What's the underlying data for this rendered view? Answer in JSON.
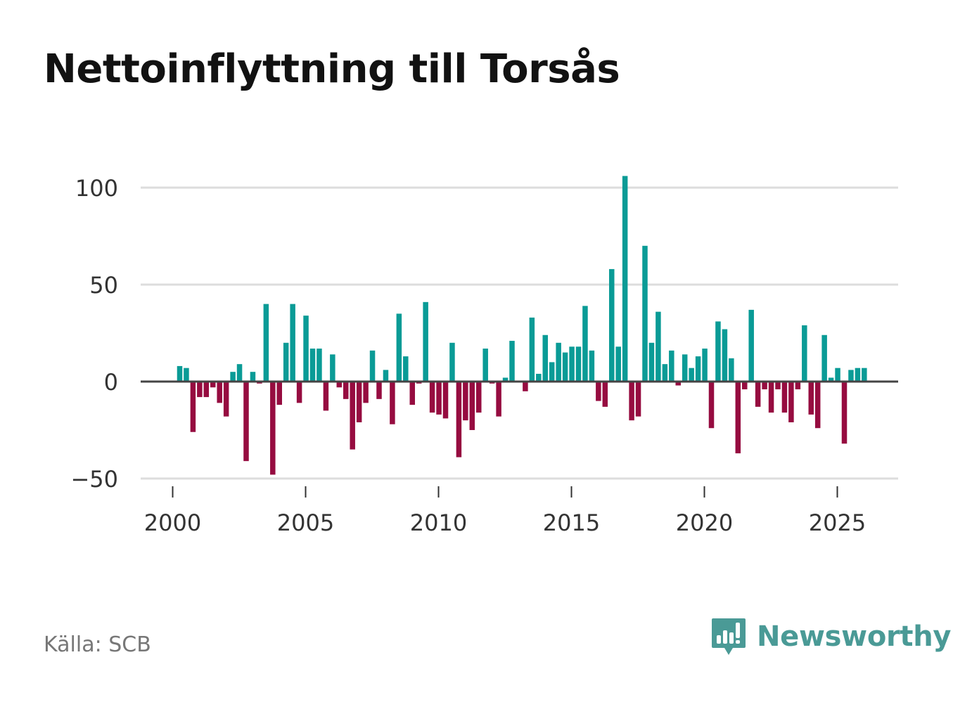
{
  "title": "Nettoinflyttning till Torsås",
  "source": "Källa: SCB",
  "brand": {
    "name": "Newsworthy",
    "logo_icon": "newsworthy-logo-icon"
  },
  "colors": {
    "positive": "#0a9b96",
    "negative": "#960c40",
    "grid": "#dddddd",
    "zero_line": "#444444",
    "brand": "#4a9a96"
  },
  "chart_data": {
    "type": "bar",
    "title": "Nettoinflyttning till Torsås",
    "xlabel": "",
    "ylabel": "",
    "x_start": 2000.0,
    "x_step": 0.25,
    "values": [
      8,
      7,
      -26,
      -8,
      -8,
      -3,
      -11,
      -18,
      5,
      9,
      -41,
      5,
      -1,
      40,
      -48,
      -12,
      20,
      40,
      -11,
      34,
      17,
      17,
      -15,
      14,
      -3,
      -9,
      -35,
      -21,
      -11,
      16,
      -9,
      6,
      -22,
      35,
      13,
      -12,
      -1,
      41,
      -16,
      -17,
      -19,
      20,
      -39,
      -20,
      -25,
      -16,
      17,
      -1,
      -18,
      2,
      21,
      0,
      -5,
      33,
      4,
      24,
      10,
      20,
      15,
      18,
      18,
      39,
      16,
      -10,
      -13,
      58,
      18,
      106,
      -20,
      -18,
      70,
      20,
      36,
      9,
      16,
      -2,
      14,
      7,
      13,
      17,
      -24,
      31,
      27,
      12,
      -37,
      -4,
      37,
      -13,
      -4,
      -16,
      -4,
      -16,
      -21,
      -4,
      29,
      -17,
      -24,
      24,
      2,
      7,
      -32,
      6,
      7,
      7
    ],
    "x_ticks": [
      "2000",
      "2005",
      "2010",
      "2015",
      "2020",
      "2025"
    ],
    "y_ticks": [
      "100",
      "50",
      "0",
      "−50"
    ],
    "ylim": [
      -55,
      110
    ],
    "grid": true
  }
}
